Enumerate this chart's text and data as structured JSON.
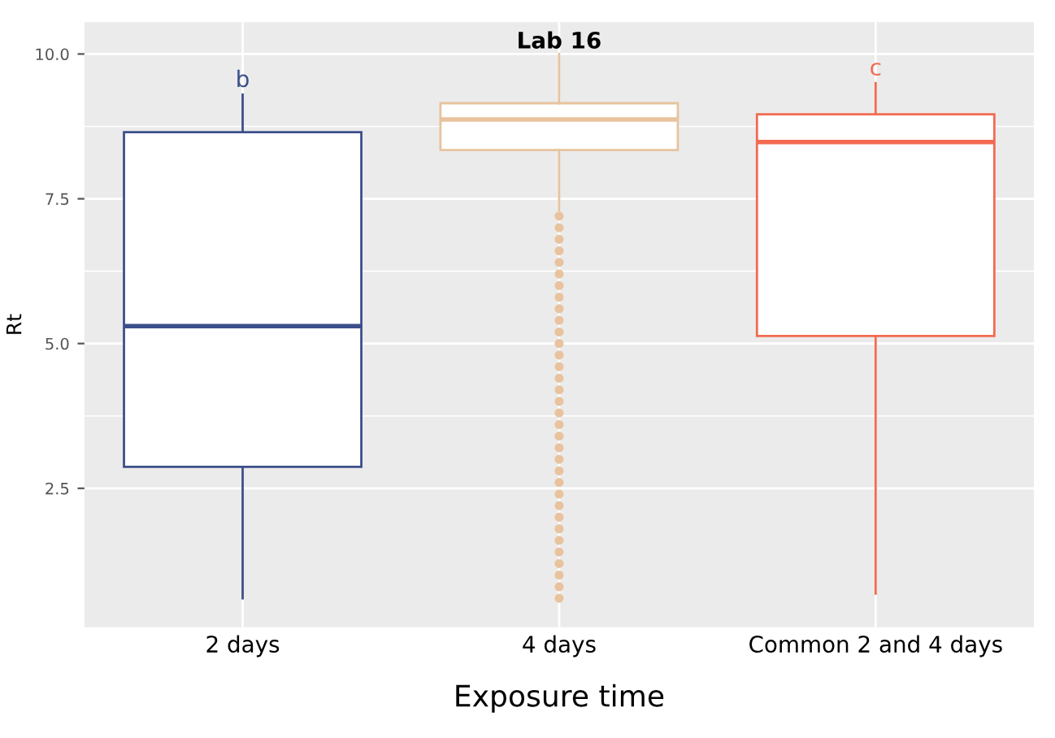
{
  "chart_data": {
    "type": "box",
    "title": "Lab 16",
    "xlabel": "Exposure time",
    "ylabel": "Rt",
    "categories": [
      "2 days",
      "4 days",
      "Common 2 and 4 days"
    ],
    "colors": [
      "#3b4f8a",
      "#e8c39e",
      "#f26b50"
    ],
    "boxes": [
      {
        "low": 0.6,
        "q1": 2.87,
        "median": 5.3,
        "q3": 8.65,
        "high": 9.3
      },
      {
        "low": 7.3,
        "q1": 8.34,
        "median": 8.87,
        "q3": 9.15,
        "high": 10.0,
        "outliers": [
          7.2,
          7.0,
          6.8,
          6.6,
          6.4,
          6.2,
          6.0,
          5.8,
          5.6,
          5.4,
          5.2,
          5.0,
          4.8,
          4.6,
          4.4,
          4.2,
          4.0,
          3.8,
          3.6,
          3.4,
          3.2,
          3.0,
          2.8,
          2.6,
          2.4,
          2.2,
          2.0,
          1.8,
          1.6,
          1.4,
          1.2,
          1.0,
          0.8,
          0.6
        ]
      },
      {
        "low": 0.68,
        "q1": 5.13,
        "median": 8.48,
        "q3": 8.96,
        "high": 9.5
      }
    ],
    "annotations": [
      "b",
      "c"
    ],
    "ylim": [
      0.1,
      10.55
    ],
    "yticks": [
      2.5,
      {
        "value": 5,
        "label": "5.0"
      },
      7.5,
      {
        "value": 10,
        "label": "10.0"
      }
    ],
    "grid": true,
    "legend": false
  }
}
